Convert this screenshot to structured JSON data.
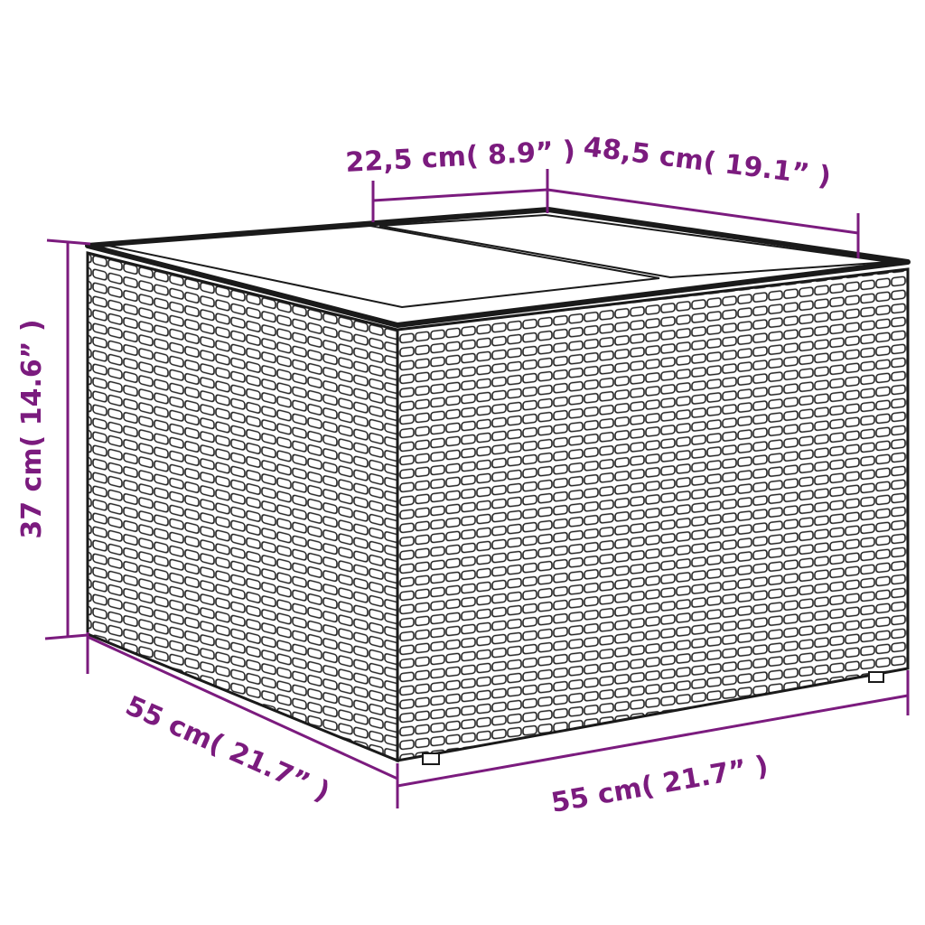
{
  "colors": {
    "dimension": "#7b1b7e",
    "outline": "#1a1a1a",
    "background": "#ffffff"
  },
  "object": {
    "type": "wicker storage box with two-panel lid"
  },
  "dimensions": {
    "lid_panel_width": "22,5 cm( 8.9” )",
    "depth_top": "48,5 cm( 19.1” )",
    "height": "37 cm( 14.6” )",
    "side_width": "55 cm( 21.7” )",
    "front_width": "55 cm( 21.7” )"
  }
}
